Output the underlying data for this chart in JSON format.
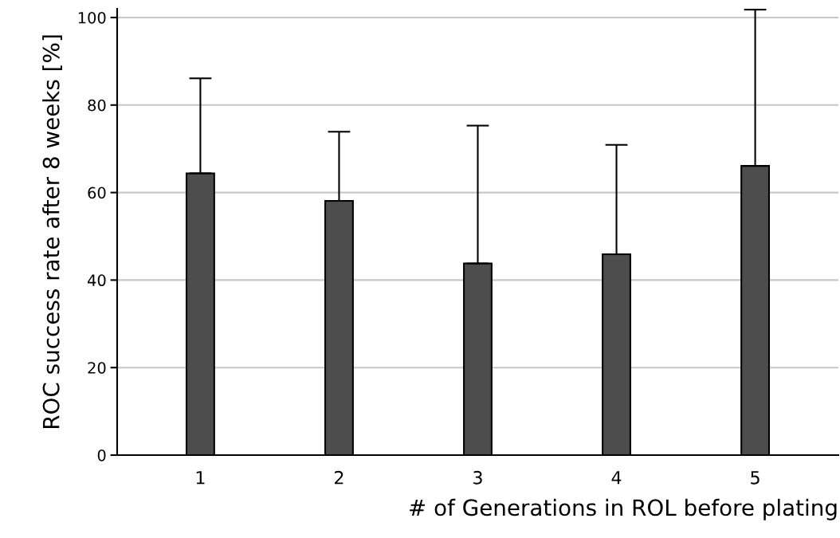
{
  "chart_data": {
    "type": "bar",
    "xlabel": "# of Generations in ROL before plating",
    "ylabel": "ROC success rate after 8 weeks [%]",
    "categories": [
      "1",
      "2",
      "3",
      "4",
      "5"
    ],
    "values": [
      64.4,
      58.1,
      43.8,
      45.9,
      66.1
    ],
    "errors": [
      [
        64.4,
        86.1
      ],
      [
        58.1,
        73.9
      ],
      [
        43.8,
        75.3
      ],
      [
        45.9,
        70.9
      ],
      [
        66.1,
        101.8
      ]
    ],
    "color": "#4d4d4d",
    "ylim": [
      0,
      102
    ],
    "yticks": [
      0,
      20,
      40,
      60,
      80,
      100
    ],
    "grid": "y",
    "legend": false
  }
}
